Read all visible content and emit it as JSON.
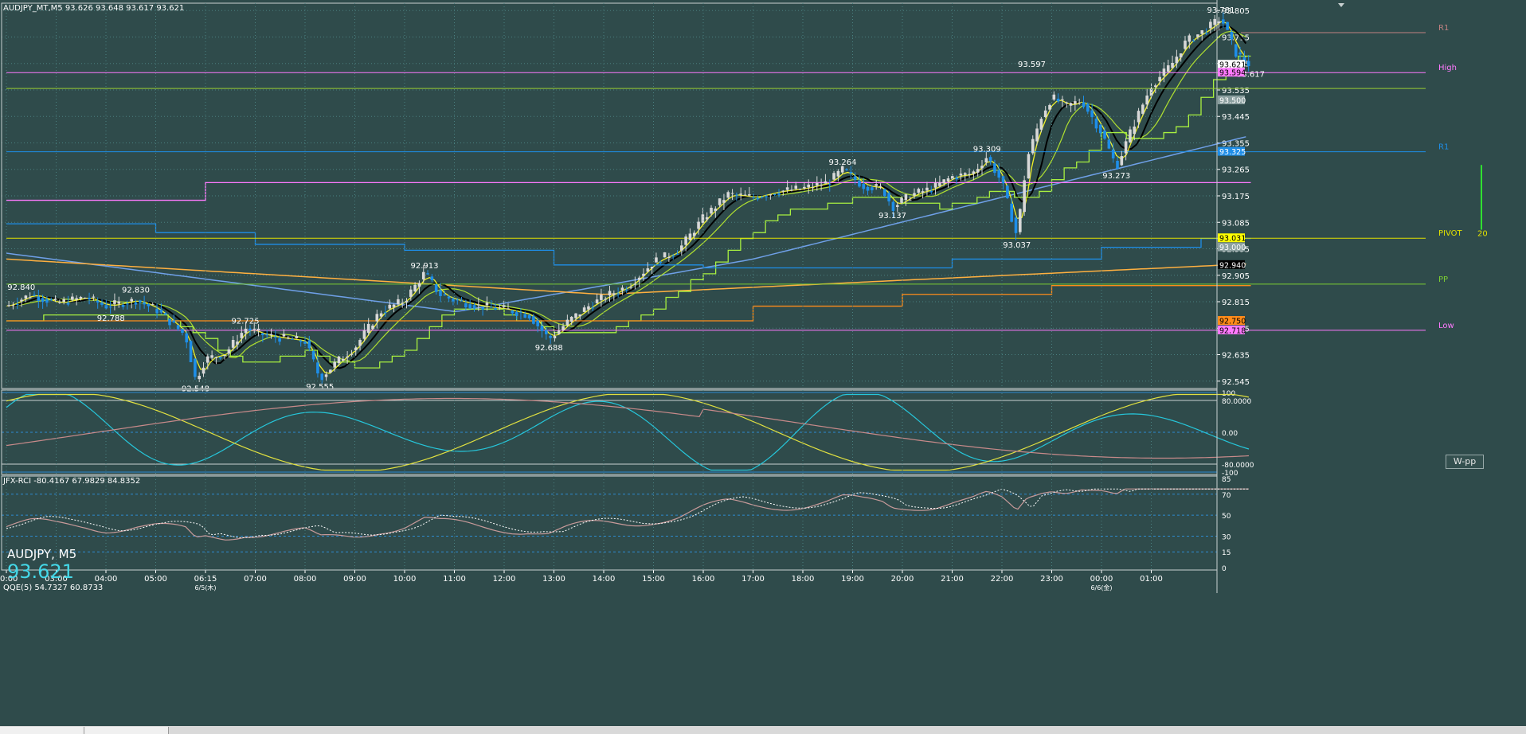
{
  "header": {
    "main_info": "AUDJPY_MT,M5  93.626 93.648 93.617 93.621",
    "rci_info": "JFX-RCI -80.4167 67.9829 84.8352",
    "qqe_info": "QQE(5) 54.7327 60.8733"
  },
  "symbol_label": "AUDJPY, M5",
  "current_price": "93.621",
  "wpp_button": "W-pp",
  "colors": {
    "background": "#2f4b4b",
    "bull": "#d8d8d8",
    "bear": "#1e8ee8",
    "ma_yellow": "#f0f028",
    "ma_black": "#000000",
    "ma_green": "#b0e030",
    "step_green": "#a8f040",
    "step_blue": "#1e8ee8",
    "step_orange": "#ff8c1a",
    "line_pink": "#ff7aff",
    "line_blue": "#6fa0e8",
    "line_orange": "#ffb040",
    "rci_cyan": "#26c6da",
    "rci_yellow": "#e0e040",
    "rci_pink": "#c88a8a"
  },
  "chart_data": {
    "type": "candlestick",
    "y_ticks": [
      "93.805",
      "93.715",
      "93.625",
      "93.535",
      "93.445",
      "93.355",
      "93.265",
      "93.175",
      "93.085",
      "92.995",
      "92.905",
      "92.815",
      "92.725",
      "92.635",
      "92.545"
    ],
    "ylim": [
      92.52,
      93.83
    ],
    "x_ticks": [
      "00:00",
      "03:00",
      "04:00",
      "05:00",
      "06:15",
      "07:00",
      "08:00",
      "09:00",
      "10:00",
      "11:00",
      "12:00",
      "13:00",
      "14:00",
      "15:00",
      "16:00",
      "17:00",
      "18:00",
      "19:00",
      "20:00",
      "21:00",
      "22:00",
      "23:00",
      "00:00",
      "01:00"
    ],
    "date_labels": [
      {
        "text": "6/5(木)",
        "at_tick": 4
      },
      {
        "text": "6/6(金)",
        "at_tick": 22
      }
    ],
    "price_path": [
      [
        0,
        92.8
      ],
      [
        0.5,
        92.84
      ],
      [
        1,
        92.81
      ],
      [
        1.6,
        92.83
      ],
      [
        2,
        92.8
      ],
      [
        2.6,
        92.82
      ],
      [
        3,
        92.79
      ],
      [
        3.6,
        92.7
      ],
      [
        3.8,
        92.548
      ],
      [
        4,
        92.62
      ],
      [
        4.4,
        92.64
      ],
      [
        4.8,
        92.725
      ],
      [
        5.2,
        92.7
      ],
      [
        5.6,
        92.69
      ],
      [
        6,
        92.68
      ],
      [
        6.3,
        92.555
      ],
      [
        6.7,
        92.62
      ],
      [
        7,
        92.66
      ],
      [
        7.5,
        92.78
      ],
      [
        8,
        92.82
      ],
      [
        8.4,
        92.913
      ],
      [
        8.7,
        92.84
      ],
      [
        9,
        92.82
      ],
      [
        9.5,
        92.8
      ],
      [
        10,
        92.79
      ],
      [
        10.5,
        92.77
      ],
      [
        10.9,
        92.688
      ],
      [
        11.3,
        92.75
      ],
      [
        11.7,
        92.8
      ],
      [
        12,
        92.83
      ],
      [
        12.5,
        92.87
      ],
      [
        13,
        92.95
      ],
      [
        13.5,
        92.99
      ],
      [
        14,
        93.1
      ],
      [
        14.5,
        93.18
      ],
      [
        15,
        93.17
      ],
      [
        15.5,
        93.19
      ],
      [
        16,
        93.2
      ],
      [
        16.5,
        93.22
      ],
      [
        16.8,
        93.264
      ],
      [
        17.2,
        93.21
      ],
      [
        17.6,
        93.2
      ],
      [
        17.8,
        93.137
      ],
      [
        18.2,
        93.18
      ],
      [
        18.6,
        93.2
      ],
      [
        19,
        93.24
      ],
      [
        19.4,
        93.25
      ],
      [
        19.7,
        93.309
      ],
      [
        20,
        93.22
      ],
      [
        20.3,
        93.037
      ],
      [
        20.5,
        93.3
      ],
      [
        20.8,
        93.45
      ],
      [
        21,
        93.51
      ],
      [
        21.3,
        93.48
      ],
      [
        21.6,
        93.5
      ],
      [
        22,
        93.39
      ],
      [
        22.3,
        93.273
      ],
      [
        22.6,
        93.4
      ],
      [
        23,
        93.55
      ],
      [
        23.4,
        93.62
      ],
      [
        23.7,
        93.7
      ],
      [
        24.1,
        93.74
      ],
      [
        24.4,
        93.781
      ],
      [
        24.7,
        93.66
      ],
      [
        25,
        93.617
      ]
    ],
    "annotations": [
      {
        "text": "92.840",
        "x": 0.3,
        "y": 92.84,
        "pos": "above"
      },
      {
        "text": "92.788",
        "x": 2.1,
        "y": 92.788,
        "pos": "below"
      },
      {
        "text": "92.830",
        "x": 2.6,
        "y": 92.83,
        "pos": "above"
      },
      {
        "text": "92.548",
        "x": 3.8,
        "y": 92.548,
        "pos": "below"
      },
      {
        "text": "92.725",
        "x": 4.8,
        "y": 92.725,
        "pos": "above"
      },
      {
        "text": "92.555",
        "x": 6.3,
        "y": 92.555,
        "pos": "below"
      },
      {
        "text": "92.913",
        "x": 8.4,
        "y": 92.913,
        "pos": "above"
      },
      {
        "text": "92.688",
        "x": 10.9,
        "y": 92.688,
        "pos": "below"
      },
      {
        "text": "93.264",
        "x": 16.8,
        "y": 93.264,
        "pos": "above"
      },
      {
        "text": "93.137",
        "x": 17.8,
        "y": 93.137,
        "pos": "below"
      },
      {
        "text": "93.309",
        "x": 19.7,
        "y": 93.309,
        "pos": "above"
      },
      {
        "text": "93.037",
        "x": 20.3,
        "y": 93.037,
        "pos": "below"
      },
      {
        "text": "93.597",
        "x": 20.6,
        "y": 93.597,
        "pos": "above"
      },
      {
        "text": "93.273",
        "x": 22.3,
        "y": 93.273,
        "pos": "below"
      },
      {
        "text": "93.781",
        "x": 24.4,
        "y": 93.781,
        "pos": "above"
      },
      {
        "text": "93.617",
        "x": 25.0,
        "y": 93.617,
        "pos": "below"
      }
    ],
    "levels": [
      {
        "label": "R1",
        "value": 93.73,
        "color": "#c08080",
        "x_from": 24.8,
        "label_color": "#c08080"
      },
      {
        "label": "High",
        "value": 93.594,
        "color": "#ff7aff",
        "x_from": 0,
        "label_color": "#ff7aff"
      },
      {
        "label": "",
        "value": 93.54,
        "color": "#9acd32",
        "x_from": 0,
        "label_color": "#9acd32"
      },
      {
        "label": "R1",
        "value": 93.325,
        "color": "#1e8ee8",
        "x_from": 0,
        "label_color": "#1e8ee8"
      },
      {
        "label": "PIVOT",
        "value": 93.031,
        "color": "#e0e000",
        "x_from": 0,
        "label_color": "#e0e000"
      },
      {
        "label": "PP",
        "value": 92.875,
        "color": "#7ccd32",
        "x_from": 0,
        "label_color": "#7ccd32"
      },
      {
        "label": "Low",
        "value": 92.718,
        "color": "#ff7aff",
        "x_from": 0,
        "label_color": "#ff7aff"
      }
    ],
    "price_tags": [
      {
        "text": "93.621",
        "value": 93.621,
        "bg": "#ffffff",
        "fg": "#000000"
      },
      {
        "text": "93.594",
        "value": 93.594,
        "bg": "#ff7aff",
        "fg": "#000000"
      },
      {
        "text": "93.500",
        "value": 93.5,
        "bg": "#8ca0a0",
        "fg": "#ffffff"
      },
      {
        "text": "93.325",
        "value": 93.325,
        "bg": "#1e8ee8",
        "fg": "#ffffff"
      },
      {
        "text": "93.031",
        "value": 93.031,
        "bg": "#ffff00",
        "fg": "#000000"
      },
      {
        "text": "93.000",
        "value": 93.0,
        "bg": "#8ca0a0",
        "fg": "#ffffff"
      },
      {
        "text": "92.940",
        "value": 92.94,
        "bg": "#000000",
        "fg": "#ffffff"
      },
      {
        "text": "92.750",
        "value": 92.75,
        "bg": "#ff8c1a",
        "fg": "#000000"
      },
      {
        "text": "92.718",
        "value": 92.718,
        "bg": "#ff7aff",
        "fg": "#000000"
      }
    ],
    "range_bar_label": "20",
    "rci": {
      "y_ticks": [
        "100",
        "80.0000",
        "0.00",
        "-80.0000",
        "-100"
      ],
      "ylim": [
        -100,
        100
      ]
    },
    "qqe": {
      "y_ticks": [
        "85",
        "70",
        "50",
        "30",
        "15",
        "0"
      ],
      "ylim": [
        0,
        85
      ]
    }
  }
}
